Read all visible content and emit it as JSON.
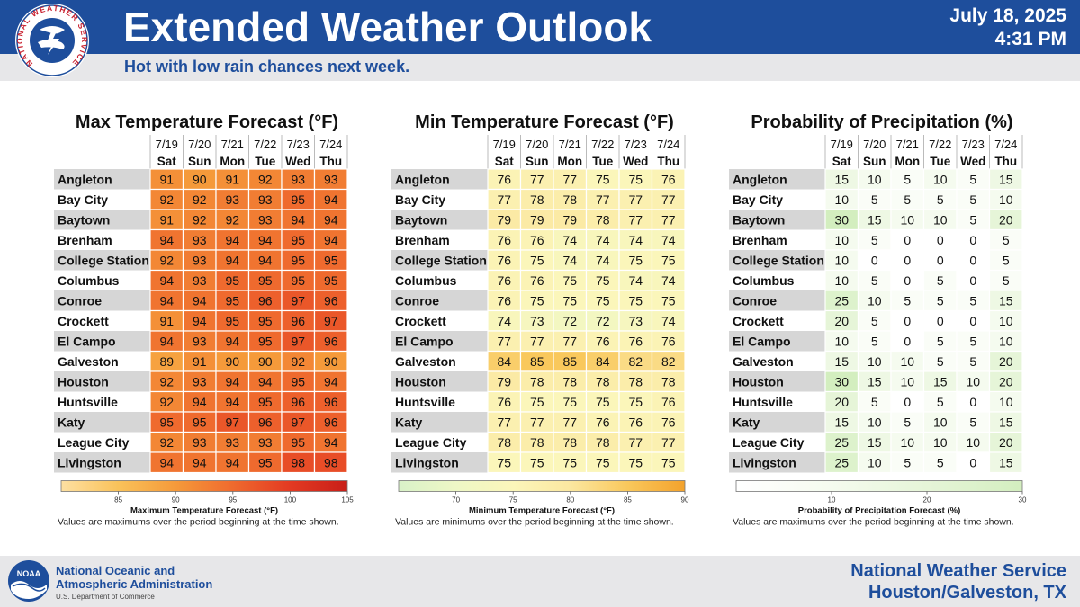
{
  "header": {
    "title": "Extended Weather Outlook",
    "subtitle": "Hot with low rain chances next week.",
    "date": "July 18, 2025",
    "time": "4:31 PM",
    "logo_text": "NATIONAL WEATHER SERVICE"
  },
  "footer": {
    "noaa_logo_text": "NOAA",
    "noaa_name_line1": "National Oceanic and",
    "noaa_name_line2": "Atmospheric Administration",
    "noaa_dept": "U.S. Department of Commerce",
    "office_name": "National Weather Service",
    "office_location": "Houston/Galveston, TX"
  },
  "colors": {
    "header_blue": "#1e4e9c",
    "band_gray": "#e7e7e9",
    "row_label_gray": "#d6d6d6"
  },
  "chart_data": [
    {
      "type": "heatmap",
      "title": "Max Temperature Forecast (°F)",
      "dates": [
        "7/19",
        "7/20",
        "7/21",
        "7/22",
        "7/23",
        "7/24"
      ],
      "days": [
        "Sat",
        "Sun",
        "Mon",
        "Tue",
        "Wed",
        "Thu"
      ],
      "locations": [
        "Angleton",
        "Bay City",
        "Baytown",
        "Brenham",
        "College Station",
        "Columbus",
        "Conroe",
        "Crockett",
        "El Campo",
        "Galveston",
        "Houston",
        "Huntsville",
        "Katy",
        "League City",
        "Livingston"
      ],
      "values": [
        [
          91,
          90,
          91,
          92,
          93,
          93
        ],
        [
          92,
          92,
          93,
          93,
          95,
          94
        ],
        [
          91,
          92,
          92,
          93,
          94,
          94
        ],
        [
          94,
          93,
          94,
          94,
          95,
          94
        ],
        [
          92,
          93,
          94,
          94,
          95,
          95
        ],
        [
          94,
          93,
          95,
          95,
          95,
          95
        ],
        [
          94,
          94,
          95,
          96,
          97,
          96
        ],
        [
          91,
          94,
          95,
          95,
          96,
          97
        ],
        [
          94,
          93,
          94,
          95,
          97,
          96
        ],
        [
          89,
          91,
          90,
          90,
          92,
          90
        ],
        [
          92,
          93,
          94,
          94,
          95,
          94
        ],
        [
          92,
          94,
          94,
          95,
          96,
          96
        ],
        [
          95,
          95,
          97,
          96,
          97,
          96
        ],
        [
          92,
          93,
          93,
          93,
          95,
          94
        ],
        [
          94,
          94,
          94,
          95,
          98,
          98
        ]
      ],
      "scale": {
        "min": 80,
        "max": 105,
        "ticks": [
          85,
          90,
          95,
          100,
          105
        ],
        "label": "Maximum Temperature Forecast (°F)",
        "colors": [
          "#fde0a2",
          "#f9c25a",
          "#f59a3a",
          "#ef6a2e",
          "#e33a22",
          "#c81e18"
        ]
      },
      "note": "Values are maximums over the period beginning at the time shown."
    },
    {
      "type": "heatmap",
      "title": "Min Temperature Forecast (°F)",
      "dates": [
        "7/19",
        "7/20",
        "7/21",
        "7/22",
        "7/23",
        "7/24"
      ],
      "days": [
        "Sat",
        "Sun",
        "Mon",
        "Tue",
        "Wed",
        "Thu"
      ],
      "locations": [
        "Angleton",
        "Bay City",
        "Baytown",
        "Brenham",
        "College Station",
        "Columbus",
        "Conroe",
        "Crockett",
        "El Campo",
        "Galveston",
        "Houston",
        "Huntsville",
        "Katy",
        "League City",
        "Livingston"
      ],
      "values": [
        [
          76,
          77,
          77,
          75,
          75,
          76
        ],
        [
          77,
          78,
          78,
          77,
          77,
          77
        ],
        [
          79,
          79,
          79,
          78,
          77,
          77
        ],
        [
          76,
          76,
          74,
          74,
          74,
          74
        ],
        [
          76,
          75,
          74,
          74,
          75,
          75
        ],
        [
          76,
          76,
          75,
          75,
          74,
          74
        ],
        [
          76,
          75,
          75,
          75,
          75,
          75
        ],
        [
          74,
          73,
          72,
          72,
          73,
          74
        ],
        [
          77,
          77,
          77,
          76,
          76,
          76
        ],
        [
          84,
          85,
          85,
          84,
          82,
          82
        ],
        [
          79,
          78,
          78,
          78,
          78,
          78
        ],
        [
          76,
          75,
          75,
          75,
          75,
          76
        ],
        [
          77,
          77,
          77,
          76,
          76,
          76
        ],
        [
          78,
          78,
          78,
          78,
          77,
          77
        ],
        [
          75,
          75,
          75,
          75,
          75,
          75
        ]
      ],
      "scale": {
        "min": 65,
        "max": 90,
        "ticks": [
          70,
          75,
          80,
          85,
          90
        ],
        "label": "Minimum Temperature Forecast (°F)",
        "colors": [
          "#d9f2c8",
          "#eef7c6",
          "#fbf6ba",
          "#fbe7a0",
          "#f9c85c",
          "#f3a22c"
        ]
      },
      "note": "Values are minimums over the period beginning at the time shown."
    },
    {
      "type": "heatmap",
      "title": "Probability of Precipitation (%)",
      "dates": [
        "7/19",
        "7/20",
        "7/21",
        "7/22",
        "7/23",
        "7/24"
      ],
      "days": [
        "Sat",
        "Sun",
        "Mon",
        "Tue",
        "Wed",
        "Thu"
      ],
      "locations": [
        "Angleton",
        "Bay City",
        "Baytown",
        "Brenham",
        "College Station",
        "Columbus",
        "Conroe",
        "Crockett",
        "El Campo",
        "Galveston",
        "Houston",
        "Huntsville",
        "Katy",
        "League City",
        "Livingston"
      ],
      "values": [
        [
          15,
          10,
          5,
          10,
          5,
          15
        ],
        [
          10,
          5,
          5,
          5,
          5,
          10
        ],
        [
          30,
          15,
          10,
          10,
          5,
          20
        ],
        [
          10,
          5,
          0,
          0,
          0,
          5
        ],
        [
          10,
          0,
          0,
          0,
          0,
          5
        ],
        [
          10,
          5,
          0,
          5,
          0,
          5
        ],
        [
          25,
          10,
          5,
          5,
          5,
          15
        ],
        [
          20,
          5,
          0,
          0,
          0,
          10
        ],
        [
          10,
          5,
          0,
          5,
          5,
          10
        ],
        [
          15,
          10,
          10,
          5,
          5,
          20
        ],
        [
          30,
          15,
          10,
          15,
          10,
          20
        ],
        [
          20,
          5,
          0,
          5,
          0,
          10
        ],
        [
          15,
          10,
          5,
          10,
          5,
          15
        ],
        [
          25,
          15,
          10,
          10,
          10,
          20
        ],
        [
          25,
          10,
          5,
          5,
          0,
          15
        ]
      ],
      "scale": {
        "min": 0,
        "max": 30,
        "ticks": [
          10,
          20,
          30
        ],
        "label": "Probability of Precipitation Forecast (%)",
        "colors": [
          "#ffffff",
          "#f5fbef",
          "#e6f5d8",
          "#d3eebf"
        ]
      },
      "note": "Values are maximums over the period beginning at the time shown."
    }
  ]
}
